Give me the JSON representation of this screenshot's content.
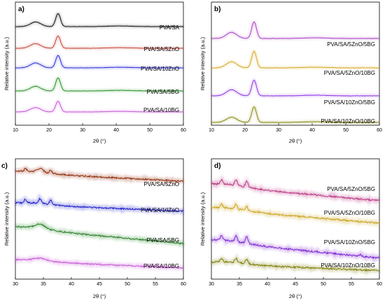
{
  "chart_data": [
    {
      "panel": "a)",
      "type": "line",
      "xlabel": "2θ (°)",
      "ylabel": "Relative intensity (a.u.)",
      "xlim": [
        10,
        60
      ],
      "xticks": [
        10,
        20,
        30,
        40,
        50,
        60
      ],
      "series": [
        {
          "name": "PVA/SA",
          "color": "#000000",
          "peaks": [
            [
              16,
              0.3,
              2.2
            ],
            [
              22.7,
              0.85,
              1.0
            ]
          ]
        },
        {
          "name": "PVA/SA/5ZnO",
          "color": "#c0392b",
          "peaks": [
            [
              16,
              0.3,
              2.2
            ],
            [
              22.7,
              0.8,
              1.0
            ]
          ]
        },
        {
          "name": "PVA/SA/10ZnO",
          "color": "#1f1fd6",
          "peaks": [
            [
              16,
              0.32,
              2.2
            ],
            [
              22.7,
              0.8,
              1.0
            ]
          ]
        },
        {
          "name": "PVA/SA/5BG",
          "color": "#1a8a1a",
          "peaks": [
            [
              16,
              0.3,
              2.2
            ],
            [
              22.7,
              0.85,
              1.0
            ]
          ]
        },
        {
          "name": "PVA/SA/10BG",
          "color": "#c44fd6",
          "peaks": [
            [
              16,
              0.28,
              2.2
            ],
            [
              22.7,
              0.7,
              1.0
            ]
          ]
        }
      ]
    },
    {
      "panel": "b)",
      "type": "line",
      "xlabel": "2θ (°)",
      "ylabel": "Relative intensity (a.u.)",
      "xlim": [
        10,
        60
      ],
      "xticks": [
        10,
        20,
        30,
        40,
        50,
        60
      ],
      "series": [
        {
          "name": "PVA/SA/5ZnO/5BG",
          "color": "#a43ac0",
          "peaks": [
            [
              16,
              0.35,
              2.2
            ],
            [
              22.7,
              0.95,
              1.0
            ]
          ]
        },
        {
          "name": "PVA/SA/5ZnO/10BG",
          "color": "#d4a017",
          "peaks": [
            [
              16,
              0.35,
              2.2
            ],
            [
              22.7,
              0.95,
              1.0
            ]
          ]
        },
        {
          "name": "PVA/SA/10ZnO/5BG",
          "color": "#8a2be2",
          "peaks": [
            [
              16,
              0.35,
              2.2
            ],
            [
              22.7,
              0.9,
              1.0
            ]
          ]
        },
        {
          "name": "PVA/SA/10ZnO/10BG",
          "color": "#808000",
          "peaks": [
            [
              16,
              0.3,
              2.2
            ],
            [
              22.7,
              0.9,
              1.0
            ]
          ]
        }
      ]
    },
    {
      "panel": "c)",
      "type": "line",
      "xlabel": "2θ (°)",
      "ylabel": "Relative intensity (a.u.)",
      "xlim": [
        30,
        60
      ],
      "xticks": [
        30,
        35,
        40,
        45,
        50,
        55,
        60
      ],
      "series": [
        {
          "name": "PVA/SA/5ZnO",
          "color": "#8b2500",
          "peaks": [
            [
              31.8,
              0.35,
              0.3
            ],
            [
              34.4,
              0.45,
              0.7
            ],
            [
              36.3,
              0.35,
              0.3
            ]
          ]
        },
        {
          "name": "PVA/SA/10ZnO",
          "color": "#1414c8",
          "peaks": [
            [
              31.8,
              0.4,
              0.3
            ],
            [
              34.4,
              0.55,
              0.4
            ],
            [
              36.3,
              0.5,
              0.3
            ]
          ]
        },
        {
          "name": "PVA/SA/5BG",
          "color": "#1e7d1e",
          "peaks": [
            [
              34.4,
              0.5,
              1.3
            ]
          ]
        },
        {
          "name": "PVA/SA/10BG",
          "color": "#c44fd6",
          "peaks": [
            [
              34.4,
              0.3,
              1.5
            ]
          ]
        }
      ]
    },
    {
      "panel": "d)",
      "type": "line",
      "xlabel": "2θ (°)",
      "ylabel": "Relative intensity (a.u.)",
      "xlim": [
        30,
        60
      ],
      "xticks": [
        30,
        35,
        40,
        45,
        50,
        55,
        60
      ],
      "series": [
        {
          "name": "PVA/SA/5ZnO/5BG",
          "color": "#b8307e",
          "peaks": [
            [
              31.8,
              0.45,
              0.3
            ],
            [
              34.4,
              0.55,
              0.3
            ],
            [
              36.3,
              0.65,
              0.3
            ]
          ]
        },
        {
          "name": "PVA/SA/5ZnO/10BG",
          "color": "#c9a017",
          "peaks": [
            [
              31.8,
              0.35,
              0.3
            ],
            [
              34.4,
              0.5,
              0.3
            ],
            [
              36.3,
              0.45,
              0.3
            ]
          ]
        },
        {
          "name": "PVA/SA/10ZnO/5BG",
          "color": "#7a1fd0",
          "peaks": [
            [
              31.8,
              0.45,
              0.3
            ],
            [
              34.4,
              0.6,
              0.3
            ],
            [
              36.3,
              0.7,
              0.3
            ],
            [
              56.6,
              0.2,
              0.3
            ]
          ]
        },
        {
          "name": "PVA/SA/10ZnO/10BG",
          "color": "#7a7a00",
          "peaks": [
            [
              31.8,
              0.35,
              0.3
            ],
            [
              34.4,
              0.45,
              0.3
            ],
            [
              36.3,
              0.45,
              0.3
            ]
          ]
        }
      ]
    }
  ]
}
